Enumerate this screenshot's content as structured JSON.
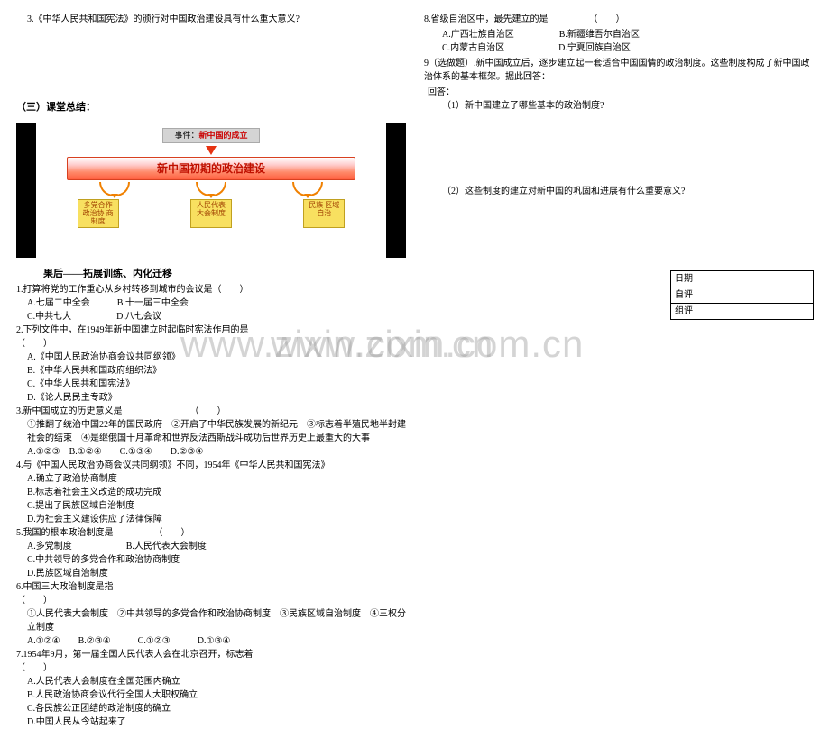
{
  "left": {
    "q3": "3.《中华人民共和国宪法》的颁行对中国政治建设具有什么重大意义?",
    "summary_heading": "（三）课堂总结：",
    "diagram": {
      "top_prefix": "事件：",
      "top_red": "新中国的成立",
      "red_band": "新中国初期的政治建设",
      "yellows": [
        "多党合作\n政治协\n商制度",
        "人民代表\n大会制度",
        "民族\n区域\n自治"
      ]
    },
    "after_heading": "果后——拓展训练、内化迁移",
    "items": [
      {
        "stem": "1.打算将党的工作重心从乡村转移到城市的会议是（　　）",
        "opts": [
          "A.七届二中全会　　　B.十一届三中全会",
          "C.中共七大　　　　　D.八七会议"
        ]
      },
      {
        "stem": "2.下列文件中，在1949年新中国建立时起临时宪法作用的是　　　　　　　　　　　　　　　　　　（　　）",
        "opts": [
          "A.《中国人民政治协商会议共同纲领》",
          "B.《中华人民共和国政府组织法》",
          "C.《中华人民共和国宪法》",
          "D.《论人民民主专政》"
        ]
      },
      {
        "stem": "3.新中国成立的历史意义是　　　　　　　　（　　）",
        "opts": [
          "①推翻了统治中国22年的国民政府　②开启了中华民族发展的新纪元　③标志着半殖民地半封建社会的结束　④是继俄国十月革命和世界反法西斯战斗成功后世界历史上最重大的大事",
          "A.①②③　B.①②④　　C.①③④　　D.②③④"
        ]
      },
      {
        "stem": "4.与《中国人民政治协商会议共同纲领》不同，1954年《中华人民共和国宪法》",
        "opts": [
          "A.确立了政治协商制度",
          "B.标志着社会主义改造的成功完成",
          "C.提出了民族区域自治制度",
          "D.为社会主义建设供应了法律保障"
        ]
      },
      {
        "stem": "5.我国的根本政治制度是　　　　　（　　）",
        "opts": [
          "A.多党制度　　　　　　B.人民代表大会制度",
          "C.中共领导的多党合作和政治协商制度",
          "D.民族区域自治制度"
        ]
      },
      {
        "stem": "6.中国三大政治制度是指　　　　　　　　　　　　　　　　　　　　　　　　　　　　　　　　　　　（　　）",
        "opts": [
          "①人民代表大会制度　②中共领导的多党合作和政治协商制度　③民族区域自治制度　④三权分立制度",
          "A.①②④　　B.②③④　　　C.①②③　　　D.①③④"
        ]
      },
      {
        "stem": "7.1954年9月，第一届全国人民代表大会在北京召开，标志着　　　　　　　　　　　　　　　　　　　（　　）",
        "opts": [
          "A.人民代表大会制度在全国范围内确立",
          "B.人民政治协商会议代行全国人大职权确立",
          "C.各民族公正团结的政治制度的确立",
          "D.中国人民从今站起来了"
        ]
      }
    ]
  },
  "right": {
    "q8": {
      "stem": "8.省级自治区中，最先建立的是　　　　　（　　）",
      "opts": [
        "A.广西壮族自治区　　　　　B.新疆维吾尔自治区",
        "C.内蒙古自治区　　　　　　D.宁夏回族自治区"
      ]
    },
    "q9": "9（选做题）.新中国成立后，逐步建立起一套适合中国国情的政治制度。这些制度构成了新中国政治体系的基本框架。据此回答：",
    "q9_sub1": "（1）新中国建立了哪些基本的政治制度?",
    "q9_sub2": "（2）这些制度的建立对新中国的巩固和进展有什么重要意义?",
    "eval": {
      "r1": "日期",
      "r2": "自评",
      "r3": "组评"
    }
  },
  "watermark": "www.zixin.com.cn"
}
